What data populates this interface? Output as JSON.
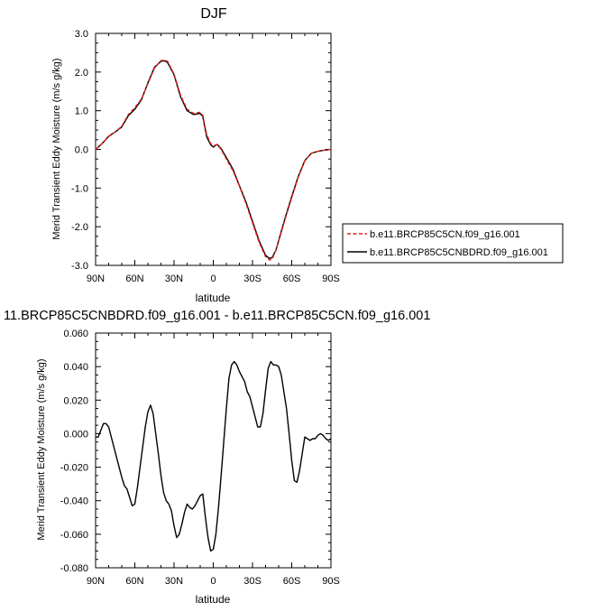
{
  "chart_data": [
    {
      "type": "line",
      "title": "DJF",
      "xlabel": "latitude",
      "ylabel": "Merid Transient Eddy Moisture (m/s g/kg)",
      "xlim": [
        90,
        -90
      ],
      "ylim": [
        -3.0,
        3.0
      ],
      "x_ticks": [
        90,
        60,
        30,
        0,
        -30,
        -60,
        -90
      ],
      "x_tick_labels": [
        "90N",
        "60N",
        "30N",
        "0",
        "30S",
        "60S",
        "90S"
      ],
      "y_ticks": [
        -3.0,
        -2.0,
        -1.0,
        0.0,
        1.0,
        2.0,
        3.0
      ],
      "y_tick_labels": [
        "-3.0",
        "-2.0",
        "-1.0",
        "0.0",
        "1.0",
        "2.0",
        "3.0"
      ],
      "grid": false,
      "legend": "outside-right",
      "series": [
        {
          "name": "b.e11.BRCP85C5CN.f09_g16.001",
          "color": "#e8201a",
          "dash": "dashed",
          "x": [
            90,
            85,
            80,
            75,
            70,
            65,
            60,
            55,
            50,
            45,
            40,
            37,
            35,
            30,
            25,
            20,
            15,
            12,
            10,
            8,
            5,
            2,
            0,
            -3,
            -6,
            -10,
            -15,
            -20,
            -25,
            -30,
            -35,
            -40,
            -43,
            -45,
            -48,
            -52,
            -55,
            -60,
            -65,
            -70,
            -75,
            -80,
            -85,
            -90
          ],
          "y": [
            0.0,
            0.15,
            0.33,
            0.45,
            0.6,
            0.9,
            1.08,
            1.3,
            1.7,
            2.1,
            2.3,
            2.3,
            2.28,
            1.95,
            1.4,
            1.04,
            0.93,
            0.95,
            0.96,
            0.88,
            0.38,
            0.15,
            0.1,
            0.12,
            0.0,
            -0.25,
            -0.55,
            -0.95,
            -1.4,
            -1.9,
            -2.4,
            -2.78,
            -2.86,
            -2.84,
            -2.6,
            -2.15,
            -1.8,
            -1.25,
            -0.72,
            -0.3,
            -0.1,
            -0.05,
            -0.02,
            0.0
          ]
        },
        {
          "name": "b.e11.BRCP85C5CNBDRD.f09_g16.001",
          "color": "#000000",
          "dash": "solid",
          "x": [
            90,
            85,
            80,
            75,
            70,
            65,
            60,
            55,
            50,
            45,
            40,
            37,
            35,
            30,
            25,
            20,
            15,
            12,
            10,
            8,
            5,
            2,
            0,
            -3,
            -6,
            -10,
            -15,
            -20,
            -25,
            -30,
            -35,
            -40,
            -43,
            -45,
            -48,
            -52,
            -55,
            -60,
            -65,
            -70,
            -75,
            -80,
            -85,
            -90
          ],
          "y": [
            0.0,
            0.15,
            0.34,
            0.45,
            0.58,
            0.87,
            1.04,
            1.28,
            1.72,
            2.12,
            2.28,
            2.29,
            2.25,
            1.93,
            1.36,
            1.0,
            0.9,
            0.92,
            0.93,
            0.85,
            0.32,
            0.12,
            0.06,
            0.13,
            0.02,
            -0.21,
            -0.51,
            -0.94,
            -1.36,
            -1.86,
            -2.36,
            -2.74,
            -2.82,
            -2.8,
            -2.6,
            -2.12,
            -1.77,
            -1.22,
            -0.7,
            -0.29,
            -0.1,
            -0.05,
            -0.02,
            0.0
          ]
        }
      ]
    },
    {
      "type": "line",
      "title": "11.BRCP85C5CNBDRD.f09_g16.001 - b.e11.BRCP85C5CN.f09_g16.001",
      "xlabel": "latitude",
      "ylabel": "Merid Transient Eddy Moisture (m/s g/kg)",
      "xlim": [
        90,
        -90
      ],
      "ylim": [
        -0.08,
        0.06
      ],
      "x_ticks": [
        90,
        60,
        30,
        0,
        -30,
        -60,
        -90
      ],
      "x_tick_labels": [
        "90N",
        "60N",
        "30N",
        "0",
        "30S",
        "60S",
        "90S"
      ],
      "y_ticks": [
        -0.08,
        -0.06,
        -0.04,
        -0.02,
        0.0,
        0.02,
        0.04,
        0.06
      ],
      "y_tick_labels": [
        "-0.080",
        "-0.060",
        "-0.040",
        "-0.020",
        "0.000",
        "0.020",
        "0.040",
        "0.060"
      ],
      "grid": false,
      "series": [
        {
          "color": "#000000",
          "dash": "solid",
          "x": [
            90,
            88,
            86,
            84,
            82,
            80,
            78,
            76,
            74,
            72,
            70,
            68,
            66,
            64,
            62,
            60,
            58,
            56,
            54,
            52,
            50,
            48,
            46,
            44,
            42,
            40,
            38,
            36,
            34,
            32,
            30,
            28,
            26,
            24,
            22,
            20,
            18,
            16,
            14,
            12,
            10,
            8,
            6,
            4,
            2,
            0,
            -2,
            -4,
            -6,
            -8,
            -10,
            -12,
            -14,
            -16,
            -18,
            -20,
            -22,
            -24,
            -26,
            -28,
            -30,
            -32,
            -34,
            -36,
            -38,
            -40,
            -42,
            -44,
            -46,
            -48,
            -50,
            -52,
            -54,
            -56,
            -58,
            -60,
            -62,
            -64,
            -66,
            -68,
            -70,
            -72,
            -74,
            -76,
            -78,
            -80,
            -82,
            -84,
            -86,
            -88,
            -90
          ],
          "y": [
            -0.002,
            -0.002,
            0.002,
            0.006,
            0.006,
            0.004,
            -0.002,
            -0.008,
            -0.014,
            -0.02,
            -0.026,
            -0.031,
            -0.033,
            -0.038,
            -0.043,
            -0.042,
            -0.032,
            -0.02,
            -0.008,
            0.004,
            0.013,
            0.017,
            0.012,
            0.0,
            -0.012,
            -0.025,
            -0.035,
            -0.04,
            -0.042,
            -0.046,
            -0.055,
            -0.062,
            -0.06,
            -0.054,
            -0.047,
            -0.042,
            -0.044,
            -0.045,
            -0.043,
            -0.04,
            -0.037,
            -0.036,
            -0.05,
            -0.062,
            -0.07,
            -0.069,
            -0.06,
            -0.044,
            -0.025,
            -0.005,
            0.015,
            0.033,
            0.041,
            0.043,
            0.041,
            0.037,
            0.034,
            0.031,
            0.025,
            0.022,
            0.016,
            0.01,
            0.004,
            0.004,
            0.012,
            0.026,
            0.039,
            0.043,
            0.041,
            0.041,
            0.04,
            0.035,
            0.025,
            0.015,
            0.0,
            -0.016,
            -0.028,
            -0.029,
            -0.022,
            -0.012,
            -0.002,
            -0.003,
            -0.004,
            -0.003,
            -0.003,
            -0.001,
            0.0,
            -0.001,
            -0.003,
            -0.004,
            -0.003
          ]
        }
      ]
    }
  ]
}
